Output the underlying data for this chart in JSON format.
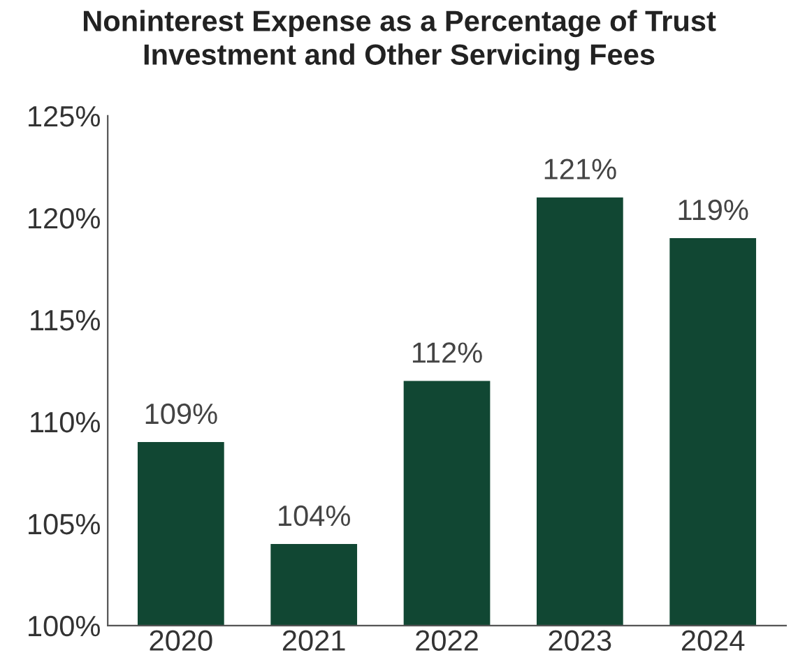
{
  "chart_data": {
    "type": "bar",
    "title": "Noninterest Expense as a Percentage of Trust\nInvestment and Other Servicing Fees",
    "categories": [
      "2020",
      "2021",
      "2022",
      "2023",
      "2024"
    ],
    "values": [
      109,
      104,
      112,
      121,
      119
    ],
    "value_labels": [
      "109%",
      "104%",
      "112%",
      "121%",
      "119%"
    ],
    "color": "#114733",
    "ylim": [
      100,
      125
    ],
    "yticks": [
      {
        "value": 100,
        "label": "100%"
      },
      {
        "value": 105,
        "label": "105%"
      },
      {
        "value": 110,
        "label": "110%"
      },
      {
        "value": 115,
        "label": "115%"
      },
      {
        "value": 120,
        "label": "120%"
      },
      {
        "value": 125,
        "label": "125%"
      }
    ],
    "grid": false,
    "legend": false
  }
}
